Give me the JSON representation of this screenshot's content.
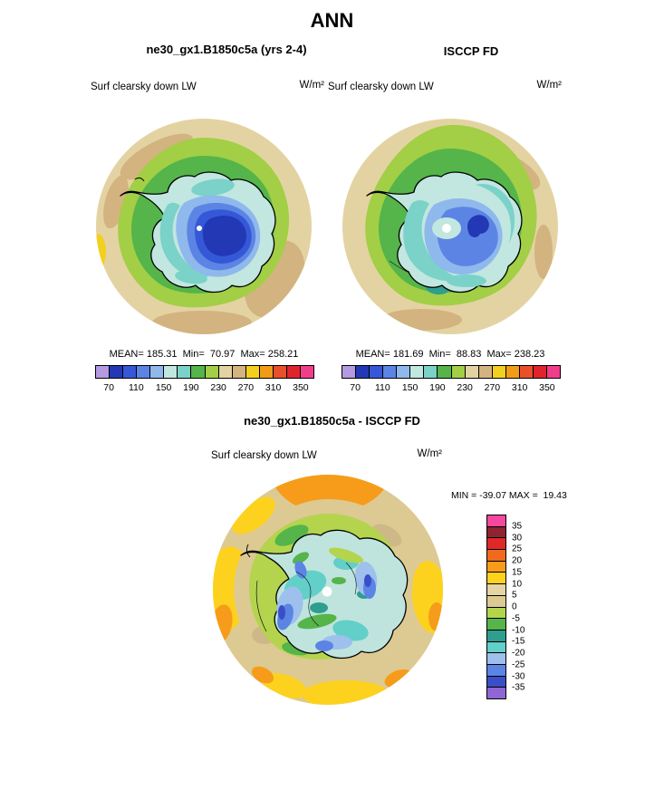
{
  "page_title": "ANN",
  "top_left": {
    "title": "ne30_gx1.B1850c5a (yrs 2-4)",
    "field": "Surf clearsky down LW",
    "units": "W/m²",
    "stats": "MEAN= 185.31  Min=  70.97  Max= 258.21"
  },
  "top_right": {
    "title": "ISCCP FD",
    "field": "Surf clearsky down LW",
    "units": "W/m²",
    "stats": "MEAN= 181.69  Min=  88.83  Max= 238.23"
  },
  "diff": {
    "title": "ne30_gx1.B1850c5a - ISCCP FD",
    "field": "Surf clearsky down LW",
    "units": "W/m²",
    "stats": "MIN = -39.07 MAX =  19.43"
  },
  "colorbar_top": {
    "tick_labels": [
      "70",
      "110",
      "150",
      "190",
      "230",
      "270",
      "310",
      "350"
    ],
    "colors": [
      "#b49ae0",
      "#2238b4",
      "#3558d8",
      "#5b84e4",
      "#8fb8ec",
      "#c2e6e0",
      "#7ad2c8",
      "#55b44a",
      "#a2cf45",
      "#e4d3a2",
      "#d3b380",
      "#f3cf20",
      "#f09c18",
      "#e8502a",
      "#e0242c",
      "#f03e8c"
    ]
  },
  "colorbar_diff": {
    "labels": [
      "35",
      "30",
      "25",
      "20",
      "15",
      "10",
      "5",
      "0",
      "-5",
      "-10",
      "-15",
      "-20",
      "-25",
      "-30",
      "-35"
    ],
    "colors": [
      "#f4489e",
      "#8e2430",
      "#e02828",
      "#f06a1e",
      "#f69c1a",
      "#fdd21e",
      "#e6d4a4",
      "#ddc992",
      "#b4d44e",
      "#55b44a",
      "#2f9e8e",
      "#62cfc8",
      "#9ec0ec",
      "#5b84e4",
      "#3a4ec8",
      "#8f66d4"
    ]
  },
  "chart_data": [
    {
      "type": "heatmap",
      "panel": "top-left",
      "title": "ne30_gx1.B1850c5a (yrs 2-4)",
      "field": "Surf clearsky down LW",
      "units": "W/m²",
      "projection": "south-polar",
      "mean": 185.31,
      "min": 70.97,
      "max": 258.21,
      "contour_interval": 20,
      "tick_values": [
        70,
        110,
        150,
        190,
        230,
        270,
        310,
        350
      ]
    },
    {
      "type": "heatmap",
      "panel": "top-right",
      "title": "ISCCP FD",
      "field": "Surf clearsky down LW",
      "units": "W/m²",
      "projection": "south-polar",
      "mean": 181.69,
      "min": 88.83,
      "max": 238.23,
      "contour_interval": 20,
      "tick_values": [
        70,
        110,
        150,
        190,
        230,
        270,
        310,
        350
      ]
    },
    {
      "type": "heatmap",
      "panel": "difference",
      "title": "ne30_gx1.B1850c5a - ISCCP FD",
      "field": "Surf clearsky down LW",
      "units": "W/m²",
      "projection": "south-polar",
      "min": -39.07,
      "max": 19.43,
      "contour_interval": 5,
      "tick_values": [
        35,
        30,
        25,
        20,
        15,
        10,
        5,
        0,
        -5,
        -10,
        -15,
        -20,
        -25,
        -30,
        -35
      ]
    }
  ]
}
